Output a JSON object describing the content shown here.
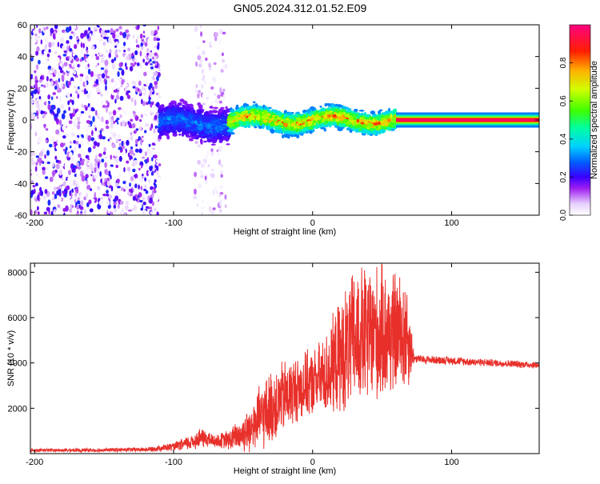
{
  "title": "GN05.2024.312.01.52.E09",
  "chart_data": [
    {
      "type": "heatmap",
      "title": "GN05.2024.312.01.52.E09",
      "xlabel": "Height of straight line (km)",
      "ylabel": "Frequency (Hz)",
      "xlim": [
        -203,
        163
      ],
      "ylim": [
        -60,
        60
      ],
      "xticks": [
        "-200",
        "-100",
        "0",
        "100"
      ],
      "yticks": [
        "-60",
        "-40",
        "-20",
        "0",
        "20",
        "40",
        "60"
      ],
      "colorbar": {
        "label": "Normalized spectral amplitude",
        "range": [
          0,
          1
        ],
        "ticks": [
          "0.0",
          "0.2",
          "0.4",
          "0.6",
          "0.8"
        ],
        "colormap": "white-violet-blue-cyan-green-yellow-red-magenta"
      },
      "description_bands": [
        {
          "x": [
            -203,
            -110
          ],
          "kind": "noise",
          "freq_spread_hz": [
            -60,
            60
          ],
          "amplitude": [
            0.0,
            0.25
          ]
        },
        {
          "x": [
            -85,
            -62
          ],
          "kind": "noise",
          "freq_spread_hz": [
            -60,
            60
          ],
          "amplitude": [
            0.0,
            0.12
          ]
        },
        {
          "x": [
            -110,
            -60
          ],
          "kind": "signal",
          "freq_center_hz": -2,
          "freq_halfwidth_hz": 14,
          "amplitude": [
            0.15,
            0.35
          ]
        },
        {
          "x": [
            -60,
            60
          ],
          "kind": "signal",
          "freq_center_hz": 0,
          "freq_halfwidth_hz": 9,
          "amplitude": [
            0.3,
            0.9
          ]
        },
        {
          "x": [
            60,
            163
          ],
          "kind": "carrier",
          "freq_center_hz": 0,
          "freq_halfwidth_hz": 3,
          "amplitude": [
            0.9,
            1.0
          ]
        }
      ]
    },
    {
      "type": "line",
      "xlabel": "Height of straight line (km)",
      "ylabel": "SNR (10 * v/v)",
      "xlim": [
        -203,
        163
      ],
      "ylim": [
        0,
        8400
      ],
      "xticks": [
        "-200",
        "-100",
        "0",
        "100"
      ],
      "yticks": [
        "2000",
        "4000",
        "6000",
        "8000"
      ],
      "color": "#e8302b",
      "envelope": {
        "x": [
          -203,
          -160,
          -120,
          -100,
          -90,
          -80,
          -70,
          -60,
          -50,
          -40,
          -30,
          -20,
          -10,
          0,
          10,
          20,
          30,
          40,
          50,
          60,
          68,
          73,
          80,
          100,
          130,
          163
        ],
        "mean": [
          150,
          150,
          180,
          300,
          450,
          700,
          550,
          600,
          900,
          1400,
          2000,
          2500,
          2900,
          3100,
          3500,
          4300,
          5000,
          5200,
          5300,
          5300,
          5200,
          4200,
          4150,
          4100,
          4000,
          3900
        ],
        "amp": [
          80,
          90,
          110,
          200,
          350,
          500,
          300,
          500,
          900,
          1500,
          1800,
          1800,
          1600,
          1600,
          2000,
          2800,
          3400,
          3500,
          3300,
          3000,
          2800,
          200,
          200,
          200,
          180,
          180
        ]
      }
    }
  ]
}
